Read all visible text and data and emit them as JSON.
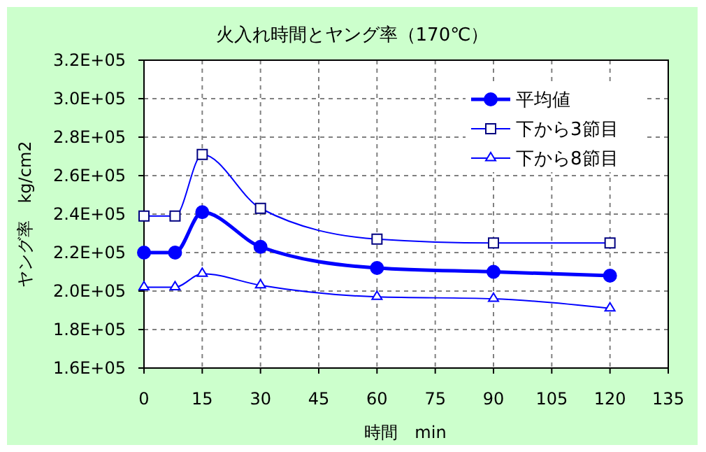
{
  "chart_data": {
    "type": "line",
    "title": "火入れ時間とヤング率（170℃）",
    "xlabel": "時間　min",
    "ylabel": "ヤング率　kg/cm2",
    "x": [
      0,
      8,
      15,
      30,
      60,
      90,
      120
    ],
    "series": [
      {
        "name": "平均値",
        "color": "#0000ff",
        "marker": "circle",
        "values": [
          220000,
          220000,
          241000,
          223000,
          212000,
          210000,
          208000
        ]
      },
      {
        "name": "下から3節目",
        "color": "#0000ff",
        "marker": "square",
        "values": [
          239000,
          239000,
          271000,
          243000,
          227000,
          225000,
          225000
        ]
      },
      {
        "name": "下から8節目",
        "color": "#0000ff",
        "marker": "triangle",
        "values": [
          202000,
          202000,
          209000,
          203000,
          197000,
          196000,
          191000
        ]
      }
    ],
    "xlim": [
      0,
      135
    ],
    "xticks": [
      0,
      15,
      30,
      45,
      60,
      75,
      90,
      105,
      120,
      135
    ],
    "ylim": [
      160000,
      320000
    ],
    "yticks": [
      {
        "value": 160000,
        "label": "1.6E+05"
      },
      {
        "value": 180000,
        "label": "1.8E+05"
      },
      {
        "value": 200000,
        "label": "2.0E+05"
      },
      {
        "value": 220000,
        "label": "2.2E+05"
      },
      {
        "value": 240000,
        "label": "2.4E+05"
      },
      {
        "value": 260000,
        "label": "2.6E+05"
      },
      {
        "value": 280000,
        "label": "2.8E+05"
      },
      {
        "value": 300000,
        "label": "3.0E+05"
      },
      {
        "value": 320000,
        "label": "3.2E+05"
      }
    ],
    "grid": true,
    "legend": "top right"
  }
}
